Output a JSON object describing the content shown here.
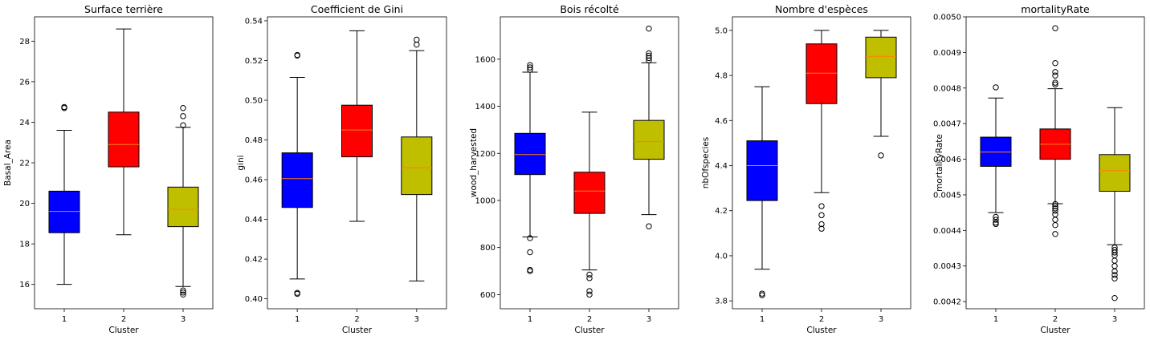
{
  "colors": {
    "cluster1": "#0000ff",
    "cluster2": "#ff0000",
    "cluster3": "#bfbf00",
    "median": "#ff7f0e"
  },
  "chart_data": [
    {
      "type": "box",
      "title": "Surface terrière",
      "xlabel": "Cluster",
      "ylabel": "Basal_Area",
      "ylim": [
        14.8,
        29.2
      ],
      "yticks": [
        16,
        18,
        20,
        22,
        24,
        26,
        28
      ],
      "ytick_labels": [
        "16",
        "18",
        "20",
        "22",
        "24",
        "26",
        "28"
      ],
      "categories": [
        "1",
        "2",
        "3"
      ],
      "boxes": [
        {
          "q1": 18.55,
          "median": 19.6,
          "q3": 20.6,
          "whislo": 16.0,
          "whishi": 23.6,
          "fliers": [
            24.7,
            24.75
          ]
        },
        {
          "q1": 21.8,
          "median": 22.9,
          "q3": 24.5,
          "whislo": 18.45,
          "whishi": 28.6,
          "fliers": []
        },
        {
          "q1": 18.85,
          "median": 19.7,
          "q3": 20.8,
          "whislo": 15.9,
          "whishi": 23.75,
          "fliers": [
            15.5,
            15.6,
            15.7,
            23.85,
            24.3,
            24.7
          ]
        }
      ]
    },
    {
      "type": "box",
      "title": "Coefficient de Gini",
      "xlabel": "Cluster",
      "ylabel": "gini",
      "ylim": [
        0.395,
        0.542
      ],
      "yticks": [
        0.4,
        0.42,
        0.44,
        0.46,
        0.48,
        0.5,
        0.52,
        0.54
      ],
      "ytick_labels": [
        "0.40",
        "0.42",
        "0.44",
        "0.46",
        "0.48",
        "0.50",
        "0.52",
        "0.54"
      ],
      "categories": [
        "1",
        "2",
        "3"
      ],
      "boxes": [
        {
          "q1": 0.446,
          "median": 0.4605,
          "q3": 0.4735,
          "whislo": 0.41,
          "whishi": 0.5115,
          "fliers": [
            0.4025,
            0.403,
            0.5225,
            0.5228
          ]
        },
        {
          "q1": 0.4715,
          "median": 0.485,
          "q3": 0.4975,
          "whislo": 0.439,
          "whishi": 0.535,
          "fliers": []
        },
        {
          "q1": 0.4525,
          "median": 0.466,
          "q3": 0.4815,
          "whislo": 0.409,
          "whishi": 0.525,
          "fliers": [
            0.528,
            0.5305
          ]
        }
      ]
    },
    {
      "type": "box",
      "title": "Bois récolté",
      "xlabel": "Cluster",
      "ylabel": "wood_harvested",
      "ylim": [
        540,
        1780
      ],
      "yticks": [
        600,
        800,
        1000,
        1200,
        1400,
        1600
      ],
      "ytick_labels": [
        "600",
        "800",
        "1000",
        "1200",
        "1400",
        "1600"
      ],
      "categories": [
        "1",
        "2",
        "3"
      ],
      "boxes": [
        {
          "q1": 1110,
          "median": 1195,
          "q3": 1285,
          "whislo": 845,
          "whishi": 1545,
          "fliers": [
            700,
            705,
            780,
            840,
            1555,
            1565,
            1575
          ]
        },
        {
          "q1": 945,
          "median": 1040,
          "q3": 1120,
          "whislo": 705,
          "whishi": 1375,
          "fliers": [
            600,
            615,
            670,
            685
          ]
        },
        {
          "q1": 1175,
          "median": 1250,
          "q3": 1340,
          "whislo": 940,
          "whishi": 1585,
          "fliers": [
            890,
            1595,
            1605,
            1615,
            1625,
            1730
          ]
        }
      ]
    },
    {
      "type": "box",
      "title": "Nombre d'espèces",
      "xlabel": "Cluster",
      "ylabel": "nbOfspecies",
      "ylim": [
        3.765,
        5.06
      ],
      "yticks": [
        3.8,
        4.0,
        4.2,
        4.4,
        4.6,
        4.8,
        5.0
      ],
      "ytick_labels": [
        "3.8",
        "4.0",
        "4.2",
        "4.4",
        "4.6",
        "4.8",
        "5.0"
      ],
      "categories": [
        "1",
        "2",
        "3"
      ],
      "boxes": [
        {
          "q1": 4.245,
          "median": 4.4,
          "q3": 4.51,
          "whislo": 3.94,
          "whishi": 4.75,
          "fliers": [
            3.825,
            3.832
          ]
        },
        {
          "q1": 4.675,
          "median": 4.81,
          "q3": 4.94,
          "whislo": 4.28,
          "whishi": 5.0,
          "fliers": [
            4.12,
            4.14,
            4.18,
            4.22
          ]
        },
        {
          "q1": 4.79,
          "median": 4.885,
          "q3": 4.97,
          "whislo": 4.53,
          "whishi": 5.0,
          "fliers": [
            4.445
          ]
        }
      ]
    },
    {
      "type": "box",
      "title": "mortalityRate",
      "xlabel": "Cluster",
      "ylabel": "mortalityRate",
      "ylim": [
        0.00418,
        0.005
      ],
      "yticks": [
        0.0042,
        0.0043,
        0.0044,
        0.0045,
        0.0046,
        0.0047,
        0.0048,
        0.0049,
        0.005
      ],
      "ytick_labels": [
        "0.0042",
        "0.0043",
        "0.0044",
        "0.0045",
        "0.0046",
        "0.0047",
        "0.0048",
        "0.0049",
        "0.0050"
      ],
      "categories": [
        "1",
        "2",
        "3"
      ],
      "boxes": [
        {
          "q1": 0.00458,
          "median": 0.00462,
          "q3": 0.004662,
          "whislo": 0.00445,
          "whishi": 0.004772,
          "fliers": [
            0.004418,
            0.004422,
            0.00443,
            0.004438,
            0.004802
          ]
        },
        {
          "q1": 0.0046,
          "median": 0.004642,
          "q3": 0.004685,
          "whislo": 0.004475,
          "whishi": 0.004798,
          "fliers": [
            0.00439,
            0.004415,
            0.00443,
            0.004445,
            0.004455,
            0.004462,
            0.004468,
            0.004474,
            0.00481,
            0.004815,
            0.004835,
            0.004845,
            0.00487,
            0.004968
          ]
        },
        {
          "q1": 0.00451,
          "median": 0.004568,
          "q3": 0.004613,
          "whislo": 0.00436,
          "whishi": 0.004745,
          "fliers": [
            0.00421,
            0.004265,
            0.004275,
            0.004285,
            0.0043,
            0.004315,
            0.00433,
            0.004338,
            0.004345,
            0.004352
          ]
        }
      ]
    }
  ]
}
